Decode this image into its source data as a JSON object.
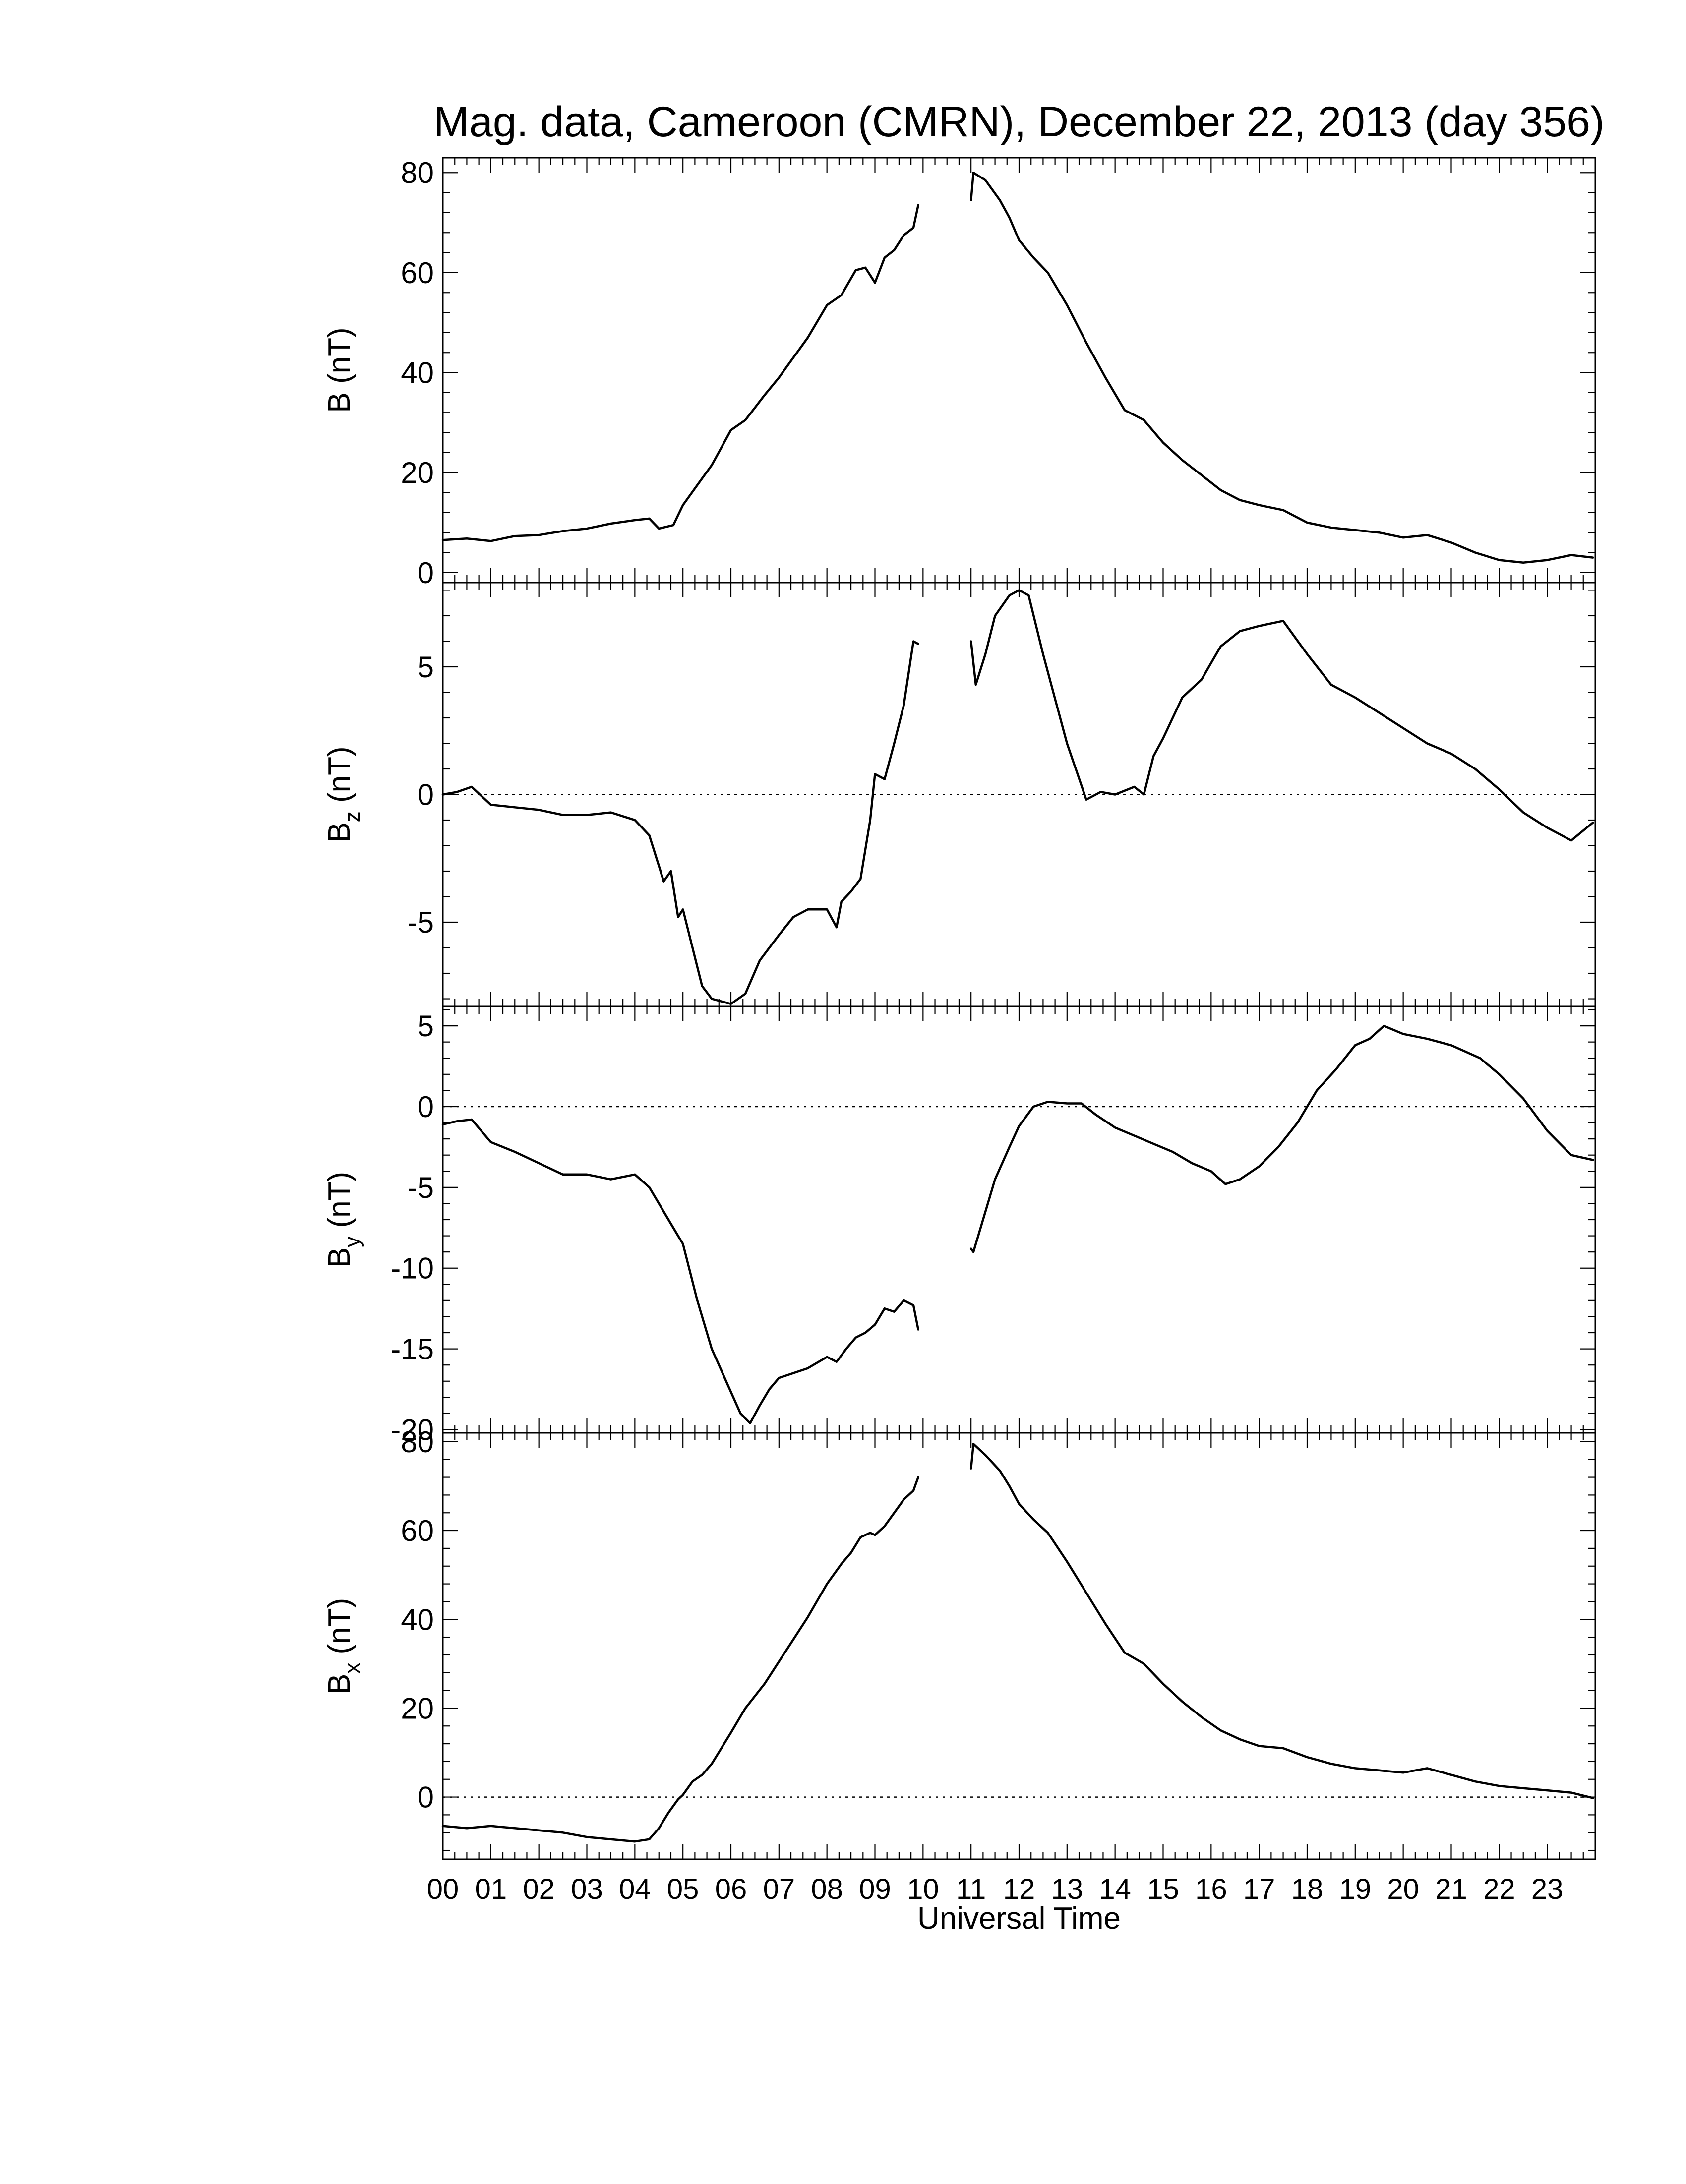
{
  "title": "Mag. data, Cameroon (CMRN), December 22, 2013 (day 356)",
  "xlabel": "Universal Time",
  "colors": {
    "line": "#000000",
    "background": "#ffffff"
  },
  "chart_data": [
    {
      "type": "line",
      "ylabel": "B (nT)",
      "ylabel_base": "B",
      "ylabel_sub": "",
      "ylabel_unit": "(nT)",
      "ylim": [
        -2,
        83
      ],
      "yticks": [
        0,
        20,
        40,
        60,
        80
      ],
      "zero_line": false,
      "xlim": [
        0,
        24
      ],
      "x": [
        0,
        0.5,
        1,
        1.5,
        2,
        2.5,
        3,
        3.5,
        4,
        4.3,
        4.5,
        4.8,
        5.0,
        5.3,
        5.6,
        6.0,
        6.3,
        6.7,
        7.0,
        7.3,
        7.6,
        8.0,
        8.3,
        8.6,
        8.8,
        9.0,
        9.2,
        9.4,
        9.6,
        9.8,
        9.9
      ],
      "y": [
        6.5,
        6.8,
        6.3,
        7.3,
        7.5,
        8.3,
        8.8,
        9.8,
        10.5,
        10.8,
        8.8,
        9.5,
        13.5,
        17.5,
        21.5,
        28.5,
        30.5,
        35.5,
        39.0,
        43.0,
        47.0,
        53.5,
        55.5,
        60.5,
        61.0,
        58.0,
        63.0,
        64.5,
        67.5,
        69.0,
        73.5
      ],
      "x2": [
        11.0,
        11.05,
        11.3,
        11.6,
        11.8,
        12.0,
        12.3,
        12.6,
        13.0,
        13.4,
        13.8,
        14.2,
        14.6,
        15.0,
        15.4,
        15.8,
        16.2,
        16.6,
        17.0,
        17.5,
        18.0,
        18.5,
        19.0,
        19.5,
        20.0,
        20.5,
        21.0,
        21.5,
        22.0,
        22.5,
        23.0,
        23.5,
        23.95
      ],
      "y2": [
        74.5,
        80.0,
        78.5,
        74.5,
        71.0,
        66.5,
        63.0,
        60.0,
        53.5,
        46.0,
        39.0,
        32.5,
        30.5,
        26.0,
        22.5,
        19.5,
        16.5,
        14.5,
        13.5,
        12.5,
        10.0,
        9.0,
        8.5,
        8.0,
        7.0,
        7.5,
        6.0,
        4.0,
        2.5,
        2.0,
        2.5,
        3.5,
        3.0
      ]
    },
    {
      "type": "line",
      "ylabel": "Bz (nT)",
      "ylabel_base": "B",
      "ylabel_sub": "z",
      "ylabel_unit": "(nT)",
      "ylim": [
        -8.3,
        8.3
      ],
      "yticks": [
        -5,
        0,
        5
      ],
      "zero_line": true,
      "xlim": [
        0,
        24
      ],
      "x": [
        0,
        0.3,
        0.6,
        1.0,
        1.5,
        2.0,
        2.5,
        3.0,
        3.5,
        4.0,
        4.3,
        4.5,
        4.6,
        4.75,
        4.9,
        5.0,
        5.2,
        5.4,
        5.6,
        6.0,
        6.3,
        6.6,
        7.0,
        7.3,
        7.6,
        8.0,
        8.2,
        8.3,
        8.5,
        8.7,
        8.9,
        9.0,
        9.2,
        9.4,
        9.6,
        9.8,
        9.9
      ],
      "y": [
        0.0,
        0.1,
        0.3,
        -0.4,
        -0.5,
        -0.6,
        -0.8,
        -0.8,
        -0.7,
        -1.0,
        -1.6,
        -2.8,
        -3.4,
        -3.0,
        -4.8,
        -4.5,
        -6.0,
        -7.5,
        -8.0,
        -8.2,
        -7.8,
        -6.5,
        -5.5,
        -4.8,
        -4.5,
        -4.5,
        -5.2,
        -4.2,
        -3.8,
        -3.3,
        -1.0,
        0.8,
        0.6,
        2.0,
        3.5,
        6.0,
        5.9
      ],
      "x2": [
        11.0,
        11.1,
        11.3,
        11.5,
        11.8,
        12.0,
        12.2,
        12.5,
        13.0,
        13.4,
        13.7,
        14.0,
        14.4,
        14.6,
        14.8,
        15.0,
        15.4,
        15.8,
        16.2,
        16.6,
        17.0,
        17.5,
        18.0,
        18.5,
        19.0,
        19.5,
        20.0,
        20.5,
        21.0,
        21.5,
        22.0,
        22.5,
        23.0,
        23.5,
        23.95
      ],
      "y2": [
        6.0,
        4.3,
        5.5,
        7.0,
        7.8,
        8.0,
        7.8,
        5.5,
        2.0,
        -0.2,
        0.1,
        0.0,
        0.3,
        0.0,
        1.5,
        2.2,
        3.8,
        4.5,
        5.8,
        6.4,
        6.6,
        6.8,
        5.5,
        4.3,
        3.8,
        3.2,
        2.6,
        2.0,
        1.6,
        1.0,
        0.2,
        -0.7,
        -1.3,
        -1.8,
        -1.1
      ]
    },
    {
      "type": "line",
      "ylabel": "By (nT)",
      "ylabel_base": "B",
      "ylabel_sub": "y",
      "ylabel_unit": "(nT)",
      "ylim": [
        -20.2,
        6.2
      ],
      "yticks": [
        -20,
        -15,
        -10,
        -5,
        0,
        5
      ],
      "zero_line": true,
      "xlim": [
        0,
        24
      ],
      "x": [
        0,
        0.3,
        0.6,
        1.0,
        1.5,
        2.0,
        2.5,
        3.0,
        3.5,
        4.0,
        4.3,
        4.6,
        4.8,
        5.0,
        5.3,
        5.6,
        5.9,
        6.2,
        6.4,
        6.6,
        6.8,
        7.0,
        7.3,
        7.6,
        8.0,
        8.2,
        8.4,
        8.6,
        8.8,
        9.0,
        9.2,
        9.4,
        9.6,
        9.8,
        9.9
      ],
      "y": [
        -1.1,
        -0.9,
        -0.8,
        -2.2,
        -2.8,
        -3.5,
        -4.2,
        -4.2,
        -4.5,
        -4.2,
        -5.0,
        -6.5,
        -7.5,
        -8.5,
        -12.0,
        -15.0,
        -17.0,
        -19.0,
        -19.6,
        -18.5,
        -17.5,
        -16.8,
        -16.5,
        -16.2,
        -15.5,
        -15.8,
        -15.0,
        -14.3,
        -14.0,
        -13.5,
        -12.5,
        -12.7,
        -12.0,
        -12.3,
        -13.8
      ],
      "x2": [
        11.0,
        11.05,
        11.2,
        11.5,
        11.8,
        12.0,
        12.3,
        12.6,
        13.0,
        13.3,
        13.6,
        14.0,
        14.4,
        14.8,
        15.2,
        15.6,
        16.0,
        16.3,
        16.6,
        17.0,
        17.4,
        17.8,
        18.2,
        18.6,
        19.0,
        19.3,
        19.6,
        20.0,
        20.5,
        21.0,
        21.3,
        21.6,
        22.0,
        22.5,
        23.0,
        23.5,
        23.95
      ],
      "y2": [
        -8.8,
        -9.0,
        -7.5,
        -4.5,
        -2.5,
        -1.2,
        0.0,
        0.3,
        0.2,
        0.2,
        -0.5,
        -1.3,
        -1.8,
        -2.3,
        -2.8,
        -3.5,
        -4.0,
        -4.8,
        -4.5,
        -3.7,
        -2.5,
        -1.0,
        1.0,
        2.3,
        3.8,
        4.2,
        5.0,
        4.5,
        4.2,
        3.8,
        3.4,
        3.0,
        2.0,
        0.5,
        -1.5,
        -3.0,
        -3.3
      ]
    },
    {
      "type": "line",
      "ylabel": "Bx (nT)",
      "ylabel_base": "B",
      "ylabel_sub": "x",
      "ylabel_unit": "(nT)",
      "ylim": [
        -14,
        82
      ],
      "yticks": [
        0,
        20,
        40,
        60,
        80
      ],
      "zero_line": true,
      "xlim": [
        0,
        24
      ],
      "x": [
        0,
        0.5,
        1.0,
        1.5,
        2.0,
        2.5,
        3.0,
        3.5,
        4.0,
        4.3,
        4.5,
        4.7,
        4.9,
        5.0,
        5.2,
        5.4,
        5.6,
        6.0,
        6.3,
        6.7,
        7.0,
        7.3,
        7.6,
        8.0,
        8.3,
        8.5,
        8.7,
        8.9,
        9.0,
        9.2,
        9.4,
        9.6,
        9.8,
        9.9
      ],
      "y": [
        -6.5,
        -7.0,
        -6.5,
        -7.0,
        -7.5,
        -8.0,
        -9.0,
        -9.5,
        -10.0,
        -9.5,
        -7.0,
        -3.5,
        -0.5,
        0.5,
        3.5,
        5.0,
        7.5,
        14.5,
        20.0,
        25.5,
        30.5,
        35.5,
        40.5,
        48.0,
        52.5,
        55.0,
        58.5,
        59.5,
        59.0,
        61.0,
        64.0,
        67.0,
        69.0,
        72.0
      ],
      "x2": [
        11.0,
        11.05,
        11.3,
        11.6,
        11.8,
        12.0,
        12.3,
        12.6,
        13.0,
        13.4,
        13.8,
        14.2,
        14.6,
        15.0,
        15.4,
        15.8,
        16.2,
        16.6,
        17.0,
        17.5,
        18.0,
        18.5,
        19.0,
        19.5,
        20.0,
        20.5,
        21.0,
        21.5,
        22.0,
        22.5,
        23.0,
        23.5,
        23.95
      ],
      "y2": [
        74.0,
        79.5,
        77.0,
        73.5,
        70.0,
        66.0,
        62.5,
        59.5,
        53.0,
        46.0,
        39.0,
        32.5,
        30.0,
        25.5,
        21.5,
        18.0,
        15.0,
        13.0,
        11.5,
        11.0,
        9.0,
        7.5,
        6.5,
        6.0,
        5.5,
        6.5,
        5.0,
        3.5,
        2.5,
        2.0,
        1.5,
        1.0,
        -0.2
      ]
    }
  ],
  "x_tick_labels": [
    "00",
    "01",
    "02",
    "03",
    "04",
    "05",
    "06",
    "07",
    "08",
    "09",
    "10",
    "11",
    "12",
    "13",
    "14",
    "15",
    "16",
    "17",
    "18",
    "19",
    "20",
    "21",
    "22",
    "23"
  ]
}
